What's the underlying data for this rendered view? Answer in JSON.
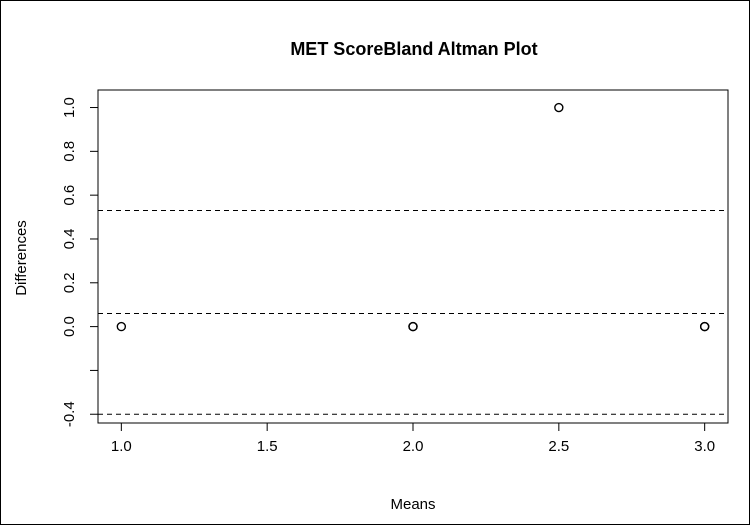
{
  "chart_data": {
    "type": "scatter",
    "title": "MET ScoreBland Altman Plot",
    "xlabel": "Means",
    "ylabel": "Differences",
    "xlim": [
      0.92,
      3.08
    ],
    "ylim": [
      -0.44,
      1.08
    ],
    "xticks": [
      {
        "value": 1.0,
        "label": "1.0"
      },
      {
        "value": 1.5,
        "label": "1.5"
      },
      {
        "value": 2.0,
        "label": "2.0"
      },
      {
        "value": 2.5,
        "label": "2.5"
      },
      {
        "value": 3.0,
        "label": "3.0"
      }
    ],
    "yticks": [
      {
        "value": -0.4,
        "label": "-0.4"
      },
      {
        "value": -0.2,
        "label": ""
      },
      {
        "value": 0.0,
        "label": "0.0"
      },
      {
        "value": 0.2,
        "label": "0.2"
      },
      {
        "value": 0.4,
        "label": "0.4"
      },
      {
        "value": 0.6,
        "label": "0.6"
      },
      {
        "value": 0.8,
        "label": "0.8"
      },
      {
        "value": 1.0,
        "label": "1.0"
      }
    ],
    "points": [
      {
        "x": 1.0,
        "y": 0.0
      },
      {
        "x": 2.0,
        "y": 0.0
      },
      {
        "x": 2.0,
        "y": 0.0
      },
      {
        "x": 2.5,
        "y": 1.0
      },
      {
        "x": 3.0,
        "y": 0.0
      },
      {
        "x": 3.0,
        "y": 0.0
      }
    ],
    "reference_lines": [
      {
        "name": "upper-limit",
        "y": 0.53
      },
      {
        "name": "mean-difference",
        "y": 0.06
      },
      {
        "name": "lower-limit",
        "y": -0.4
      }
    ],
    "grid": false,
    "legend": "none"
  }
}
